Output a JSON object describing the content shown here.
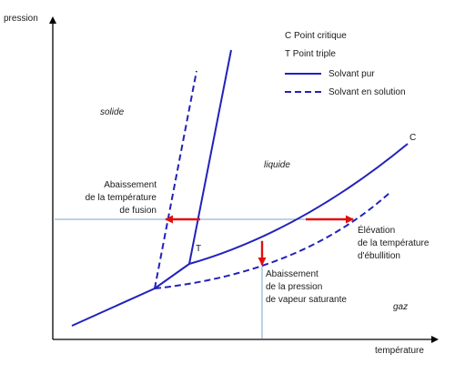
{
  "axes": {
    "y_label": "pression",
    "x_label": "température"
  },
  "legend": {
    "critical": "C Point critique",
    "triple": "T Point triple",
    "pure_solvent": "Solvant pur",
    "solution_solvent": "Solvant en solution"
  },
  "regions": {
    "solid": "solide",
    "liquid": "liquide",
    "gas": "gaz"
  },
  "points": {
    "critical": "C",
    "triple": "T"
  },
  "annotations": {
    "freezing_drop": [
      "Abaissement",
      "de la température",
      "de fusion"
    ],
    "boiling_rise": [
      "Élévation",
      "de la température",
      "d'ébullition"
    ],
    "vapor_drop": [
      "Abaissement",
      "de la pression",
      "de vapeur saturante"
    ]
  },
  "colors": {
    "curve": "#2222bb",
    "arrow": "#e01010",
    "guide": "#7fa6c9",
    "axis": "#000000"
  }
}
